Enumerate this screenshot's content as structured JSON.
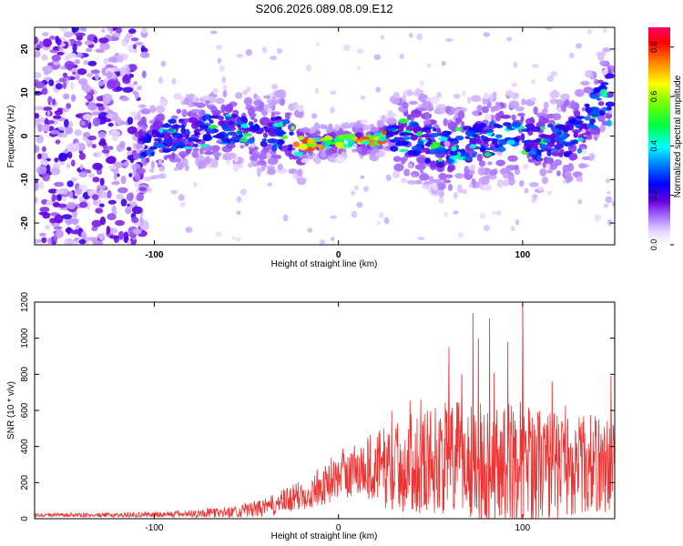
{
  "title": "S206.2026.089.08.09.E12",
  "chart_data": [
    {
      "type": "heatmap",
      "name": "spectrogram",
      "xlabel": "Height of straight line (km)",
      "ylabel": "Frequency (Hz)",
      "xlim": [
        -165,
        150
      ],
      "ylim": [
        -25,
        25
      ],
      "xticks": [
        -100,
        0,
        100
      ],
      "yticks": [
        -20,
        -10,
        0,
        10,
        20
      ],
      "colorbar": {
        "label": "Normalized spectral amplitude",
        "range": [
          0,
          0.88
        ],
        "ticks": [
          0.0,
          0.2,
          0.4,
          0.6,
          0.8
        ],
        "colors": [
          "#ffffff",
          "#f0e0ff",
          "#c9a0ff",
          "#8a2be2",
          "#5a00e6",
          "#0000ff",
          "#0080ff",
          "#00ffff",
          "#00ff80",
          "#00ff00",
          "#80ff00",
          "#ffff00",
          "#ff8000",
          "#ff0000",
          "#ff0060"
        ]
      },
      "ridge": [
        [
          -108,
          -2
        ],
        [
          -90,
          0
        ],
        [
          -60,
          2
        ],
        [
          -40,
          0
        ],
        [
          -30,
          1
        ],
        [
          -20,
          -2
        ],
        [
          -10,
          -1.5
        ],
        [
          0,
          -1.5
        ],
        [
          10,
          -1
        ],
        [
          20,
          -1
        ],
        [
          28,
          1
        ],
        [
          40,
          0
        ],
        [
          55,
          -3
        ],
        [
          70,
          -2
        ],
        [
          90,
          0
        ],
        [
          110,
          -2
        ],
        [
          130,
          0
        ],
        [
          145,
          10
        ]
      ]
    },
    {
      "type": "line",
      "name": "snr",
      "xlabel": "Height of straight line (km)",
      "ylabel": "SNR (10 * v/v)",
      "xlim": [
        -165,
        150
      ],
      "ylim": [
        0,
        1200
      ],
      "xticks": [
        -100,
        0,
        100
      ],
      "yticks": [
        0,
        200,
        400,
        600,
        800,
        1000,
        1200
      ],
      "color": "#ee3333",
      "envelope": {
        "x": [
          -165,
          -120,
          -90,
          -60,
          -40,
          -25,
          -10,
          0,
          10,
          20,
          30,
          40,
          50,
          60,
          70,
          80,
          90,
          100,
          110,
          120,
          130,
          140,
          150
        ],
        "baseline": [
          20,
          20,
          25,
          35,
          60,
          110,
          170,
          230,
          270,
          290,
          280,
          310,
          330,
          330,
          330,
          300,
          310,
          320,
          300,
          290,
          300,
          300,
          300
        ],
        "spread": [
          10,
          12,
          18,
          30,
          50,
          80,
          100,
          120,
          160,
          200,
          250,
          280,
          300,
          320,
          330,
          330,
          330,
          340,
          320,
          300,
          280,
          280,
          260
        ]
      },
      "peaks": [
        [
          73,
          1140
        ],
        [
          76,
          1000
        ],
        [
          82,
          1110
        ],
        [
          92,
          980
        ],
        [
          100,
          1205
        ],
        [
          60,
          950
        ],
        [
          67,
          800
        ],
        [
          148,
          790
        ],
        [
          116,
          760
        ]
      ]
    }
  ]
}
